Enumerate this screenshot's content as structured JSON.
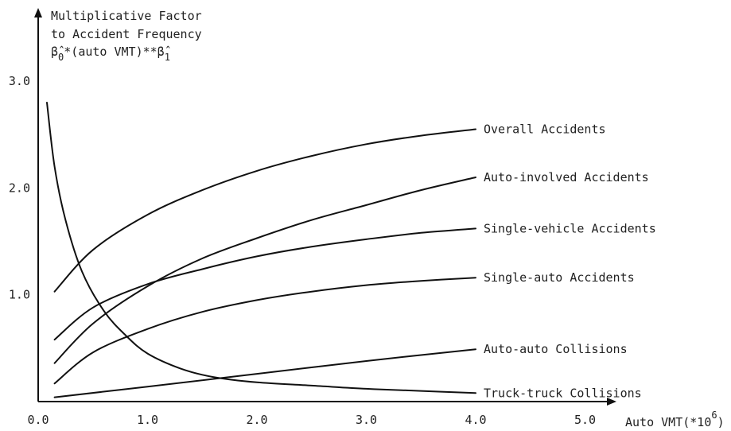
{
  "chart_data": {
    "type": "line",
    "ylabel_lines": [
      "Multiplicative Factor",
      "to Accident Frequency"
    ],
    "formula": {
      "beta0_symbol": "β̂",
      "beta0_sub": "0",
      "middle": "*(auto VMT)**",
      "beta1_symbol": "β̂",
      "beta1_sub": "1"
    },
    "xlabel": "Auto VMT(*10",
    "xlabel_exp": "6",
    "xlabel_close": ")",
    "x_ticks": [
      "0.0",
      "1.0",
      "2.0",
      "3.0",
      "4.0",
      "5.0"
    ],
    "y_ticks": [
      "1.0",
      "2.0",
      "3.0"
    ],
    "xlim": [
      0,
      5.8
    ],
    "ylim": [
      0,
      3.6
    ],
    "series": [
      {
        "name": "Overall Accidents",
        "x": [
          0.15,
          0.5,
          1.0,
          1.5,
          2.0,
          2.5,
          3.0,
          3.5,
          4.0
        ],
        "y": [
          1.03,
          1.42,
          1.75,
          1.98,
          2.16,
          2.3,
          2.41,
          2.49,
          2.55
        ]
      },
      {
        "name": "Auto-involved Accidents",
        "x": [
          0.15,
          0.5,
          1.0,
          1.5,
          2.0,
          2.5,
          3.0,
          3.5,
          4.0
        ],
        "y": [
          0.36,
          0.73,
          1.08,
          1.34,
          1.53,
          1.7,
          1.84,
          1.98,
          2.1
        ]
      },
      {
        "name": "Single-vehicle Accidents",
        "x": [
          0.15,
          0.5,
          1.0,
          1.5,
          2.0,
          2.5,
          3.0,
          3.5,
          4.0
        ],
        "y": [
          0.58,
          0.88,
          1.1,
          1.24,
          1.36,
          1.45,
          1.52,
          1.58,
          1.62
        ]
      },
      {
        "name": "Single-auto Accidents",
        "x": [
          0.15,
          0.5,
          1.0,
          1.5,
          2.0,
          2.5,
          3.0,
          3.5,
          4.0
        ],
        "y": [
          0.17,
          0.46,
          0.68,
          0.84,
          0.95,
          1.03,
          1.09,
          1.13,
          1.16
        ]
      },
      {
        "name": "Auto-auto Collisions",
        "x": [
          0.15,
          1.0,
          2.0,
          3.0,
          4.0
        ],
        "y": [
          0.04,
          0.14,
          0.26,
          0.38,
          0.49
        ]
      },
      {
        "name": "Truck-truck Collisions",
        "x": [
          0.08,
          0.15,
          0.25,
          0.4,
          0.6,
          0.8,
          1.0,
          1.3,
          1.6,
          2.0,
          2.5,
          3.0,
          3.5,
          4.0
        ],
        "y": [
          2.8,
          2.2,
          1.7,
          1.22,
          0.85,
          0.62,
          0.45,
          0.31,
          0.23,
          0.18,
          0.15,
          0.12,
          0.1,
          0.08
        ]
      }
    ]
  }
}
